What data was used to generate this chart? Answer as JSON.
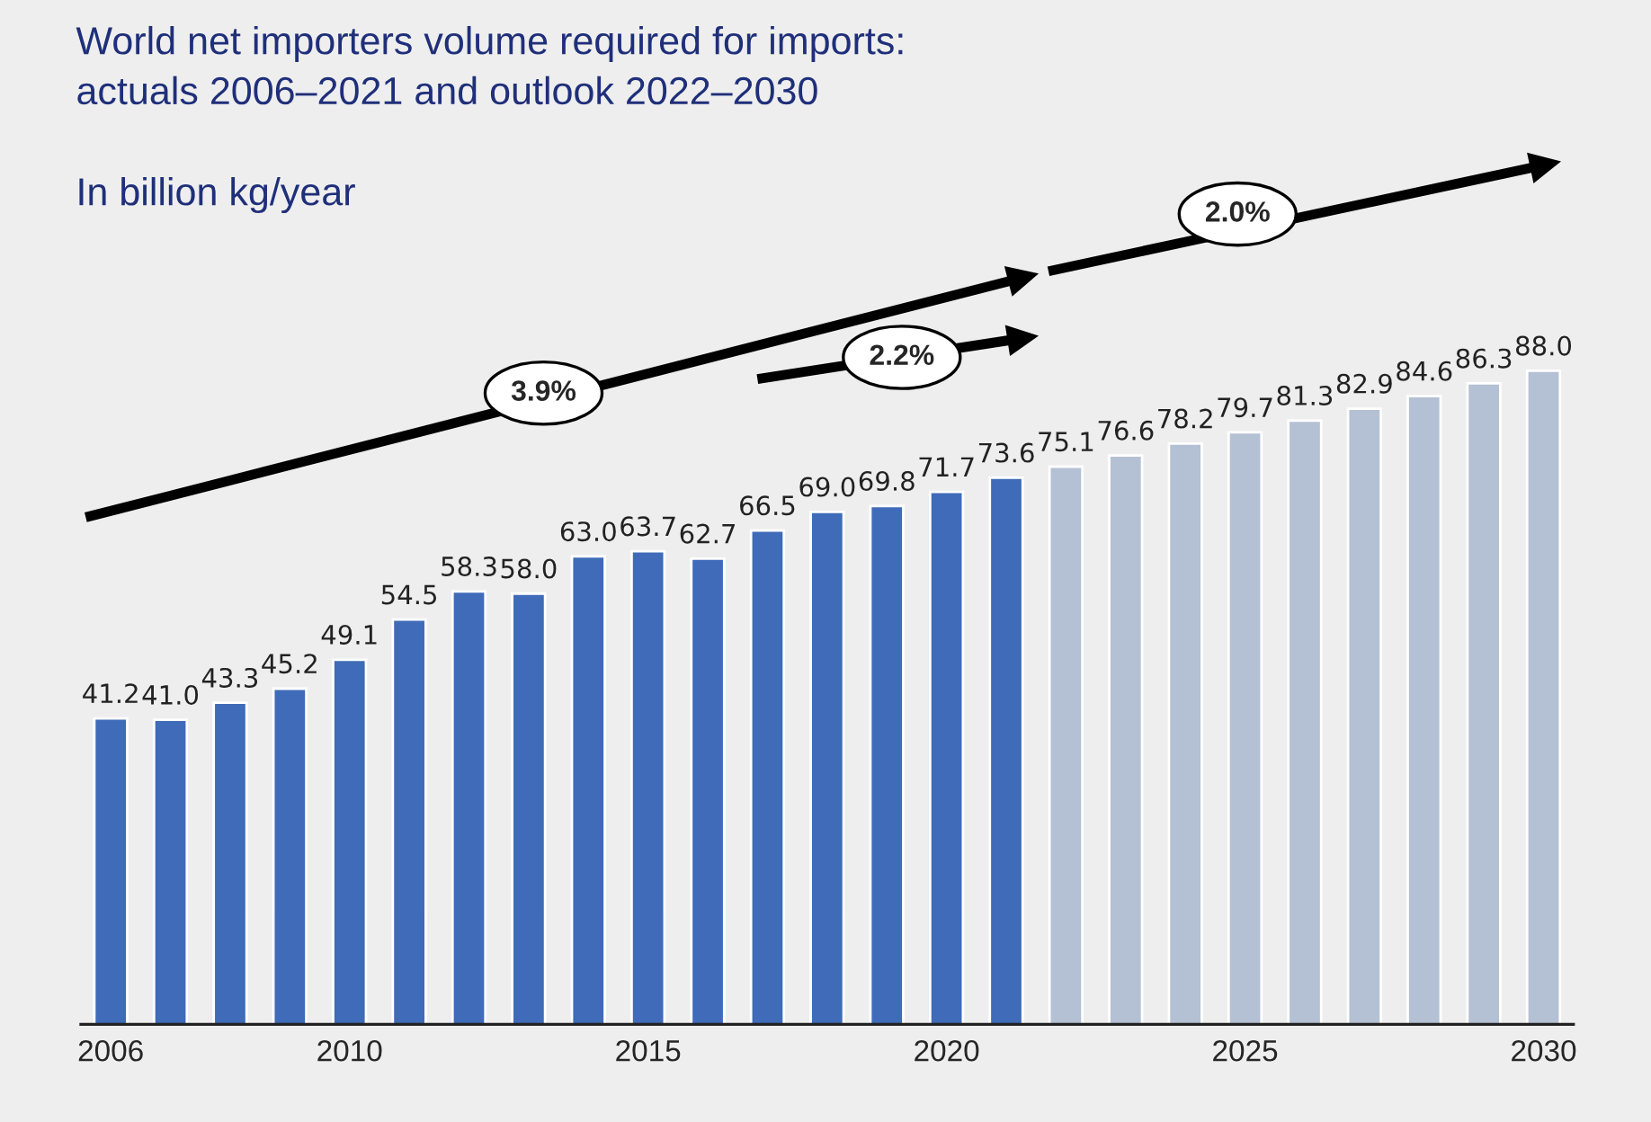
{
  "chart_data": {
    "type": "bar",
    "title": "World net importers volume required for imports:\nactuals 2006–2021 and outlook 2022–2030",
    "subtitle": "In billion kg/year",
    "categories": [
      "2006",
      null,
      null,
      null,
      "2010",
      null,
      null,
      null,
      null,
      "2015",
      null,
      null,
      null,
      null,
      "2020",
      null,
      null,
      null,
      null,
      "2025",
      null,
      null,
      null,
      null,
      "2030"
    ],
    "values": [
      41.2,
      41.0,
      43.3,
      45.2,
      49.1,
      54.5,
      58.3,
      58.0,
      63.0,
      63.7,
      62.7,
      66.5,
      69.0,
      69.8,
      71.7,
      73.6,
      75.1,
      76.6,
      78.2,
      79.7,
      81.3,
      82.9,
      84.6,
      86.3,
      88.0
    ],
    "colors": [
      "#3f6bb8",
      "#3f6bb8",
      "#3f6bb8",
      "#3f6bb8",
      "#3f6bb8",
      "#3f6bb8",
      "#3f6bb8",
      "#3f6bb8",
      "#3f6bb8",
      "#3f6bb8",
      "#3f6bb8",
      "#3f6bb8",
      "#3f6bb8",
      "#3f6bb8",
      "#3f6bb8",
      "#3f6bb8",
      "#b4c0d3",
      "#b4c0d3",
      "#b4c0d3",
      "#b4c0d3",
      "#b4c0d3",
      "#b4c0d3",
      "#b4c0d3",
      "#b4c0d3",
      "#b4c0d3"
    ],
    "value_labels": [
      "41.2",
      "41.0",
      "43.3",
      "45.2",
      "49.1",
      "54.5",
      "58.3",
      "58.0",
      "63.0",
      "63.7",
      "62.7",
      "66.5",
      "69.0",
      "69.8",
      "71.7",
      "73.6",
      "75.1",
      "76.6",
      "78.2",
      "79.7",
      "81.3",
      "82.9",
      "84.6",
      "86.3",
      "88.0"
    ],
    "tick_labels": "x",
    "grid": false,
    "legend": false,
    "annotations": [
      "3.9%",
      "2.2%",
      "2.0%"
    ]
  }
}
